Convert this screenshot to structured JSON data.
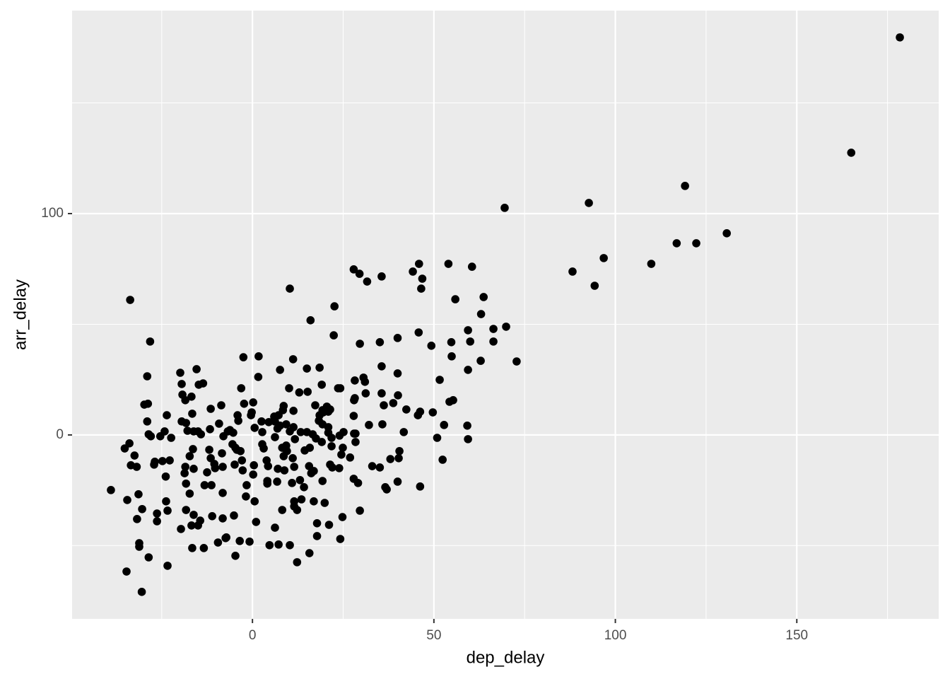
{
  "chart_data": {
    "type": "scatter",
    "x_label": "dep_delay",
    "y_label": "arr_delay",
    "xlim": [
      -49.7,
      189.1
    ],
    "ylim": [
      -83.1,
      191.7
    ],
    "xticks": [
      0,
      50,
      100,
      150
    ],
    "yticks": [
      0,
      100
    ],
    "xminor": [
      -25,
      25,
      75,
      125,
      175
    ],
    "yminor": [
      -50,
      50,
      150
    ],
    "grid": true,
    "color": "#000000",
    "x": [
      178.4,
      165.0,
      119.2,
      130.7,
      122.3,
      116.9,
      109.9,
      96.8,
      94.3,
      92.7,
      88.2,
      69.5,
      72.8,
      69.9,
      66.4,
      66.4,
      63.7,
      63.0,
      62.9,
      60.5,
      60.0,
      59.4,
      59.4,
      59.2,
      59.4,
      55.9,
      54.0,
      54.8,
      54.9,
      55.3,
      54.3,
      52.8,
      52.4,
      51.6,
      50.9,
      49.3,
      49.7,
      45.9,
      46.8,
      46.5,
      44.2,
      45.8,
      46.2,
      45.6,
      46.2,
      42.4,
      41.7,
      40.0,
      40.0,
      40.1,
      40.5,
      40.3,
      40.0,
      38.0,
      38.8,
      35.6,
      35.1,
      35.6,
      35.6,
      35.8,
      35.1,
      36.2,
      36.6,
      37.0,
      31.6,
      29.5,
      27.9,
      29.6,
      22.6,
      22.4,
      16.0,
      10.3,
      30.6,
      31.0,
      31.2,
      28.2,
      28.0,
      23.6,
      32.1,
      27.9,
      28.4,
      26.9,
      33.0,
      27.9,
      29.1,
      29.6,
      24.8,
      24.2,
      21.1,
      17.8,
      17.8,
      15.7,
      12.3,
      10.3,
      7.2,
      6.2,
      4.7,
      -0.8,
      -3.5,
      -4.7,
      -7.4,
      -9.5,
      -13.4,
      -16.6,
      -19.7,
      -23.4,
      -28.6,
      -31.2,
      -31.2,
      -34.7,
      -30.5,
      -39.0,
      -34.5,
      -31.4,
      -30.4,
      -31.8,
      -33.7,
      -28.2,
      -29.0,
      -29.8,
      -28.8,
      -29.0,
      -28.6,
      -28.0,
      -35.2,
      -33.9,
      -32.5,
      -33.5,
      -31.9,
      -26.9,
      -27.1,
      -25.4,
      -24.8,
      -23.6,
      -24.2,
      -22.4,
      -22.8,
      -23.9,
      -23.8,
      -23.4,
      -26.3,
      -26.3,
      -19.9,
      -19.5,
      -19.3,
      -18.5,
      -16.8,
      -15.4,
      -14.8,
      -13.6,
      -19.5,
      -18.3,
      -17.9,
      -16.6,
      -16.2,
      -15.0,
      -14.2,
      -16.4,
      -17.3,
      -18.5,
      -16.2,
      -18.7,
      -18.3,
      -17.3,
      -18.3,
      -16.2,
      -15.0,
      -16.8,
      -14.4,
      -13.2,
      -11.3,
      -12.5,
      -11.9,
      -11.5,
      -10.5,
      -10.3,
      -11.5,
      -8.6,
      -11.7,
      -9.2,
      -8.0,
      -8.4,
      -8.2,
      -8.2,
      -8.2,
      -11.1,
      -7.2,
      -6.8,
      -6.2,
      -5.3,
      -4.1,
      -3.9,
      -5.5,
      -4.7,
      -4.3,
      -3.3,
      -4.9,
      -2.9,
      -2.7,
      -3.1,
      -2.5,
      -2.3,
      -0.2,
      0.2,
      -0.4,
      0.6,
      0.4,
      0.2,
      -1.6,
      -1.8,
      0.6,
      1.0,
      -5.1,
      1.6,
      1.7,
      2.5,
      2.7,
      2.7,
      3.1,
      4.5,
      3.9,
      4.3,
      4.1,
      4.1,
      6.2,
      6.0,
      6.2,
      6.9,
      7.2,
      7.6,
      6.8,
      7.0,
      7.6,
      8.6,
      8.4,
      8.2,
      8.6,
      8.8,
      8.2,
      9.3,
      9.5,
      9.3,
      10.3,
      11.2,
      10.1,
      11.3,
      11.3,
      11.7,
      11.1,
      11.5,
      10.9,
      11.5,
      11.5,
      12.3,
      12.9,
      13.3,
      13.1,
      13.5,
      14.2,
      14.4,
      15.0,
      15.2,
      15.0,
      15.6,
      16.2,
      15.8,
      16.6,
      16.9,
      16.9,
      17.3,
      17.5,
      18.5,
      18.5,
      18.3,
      19.1,
      19.3,
      19.5,
      19.3,
      19.1,
      19.3,
      19.9,
      20.5,
      20.9,
      21.4,
      20.9,
      20.9,
      21.4,
      22.0,
      21.8,
      21.8,
      24.2,
      24.0,
      25.1,
      24.9,
      24.5,
      23.9,
      28.2,
      28.0,
      28.4
    ],
    "values": [
      179.6,
      127.5,
      112.5,
      91.1,
      86.6,
      86.6,
      77.3,
      79.9,
      67.4,
      104.8,
      73.8,
      102.6,
      33.2,
      48.9,
      47.9,
      42.2,
      62.3,
      54.6,
      33.5,
      76.0,
      42.2,
      47.3,
      29.4,
      4.2,
      -1.9,
      61.3,
      77.3,
      41.9,
      35.5,
      15.7,
      15.0,
      4.5,
      -11.2,
      24.9,
      -1.3,
      40.3,
      10.2,
      77.3,
      70.6,
      66.1,
      73.8,
      46.3,
      10.5,
      8.9,
      -23.3,
      11.5,
      1.3,
      43.8,
      27.8,
      17.9,
      -7.3,
      -10.5,
      -21.1,
      -10.9,
      14.4,
      71.6,
      41.9,
      31.0,
      18.8,
      4.8,
      -14.7,
      13.4,
      -23.6,
      -24.6,
      69.3,
      72.8,
      74.8,
      41.2,
      58.1,
      45.0,
      51.8,
      66.1,
      25.9,
      24.0,
      18.8,
      24.6,
      15.7,
      21.1,
      4.5,
      8.6,
      -3.2,
      -10.2,
      -14.1,
      -19.8,
      -21.7,
      -34.2,
      -37.1,
      -47.0,
      -40.6,
      -39.9,
      -45.7,
      -53.4,
      -57.5,
      -49.8,
      -49.5,
      -41.9,
      -49.8,
      -48.2,
      -47.9,
      -54.6,
      -46.6,
      -48.6,
      -51.1,
      -51.1,
      -42.5,
      -59.1,
      -55.3,
      -50.5,
      -48.9,
      -61.7,
      -70.9,
      -24.9,
      -29.4,
      -26.8,
      -33.5,
      -38.0,
      61.0,
      42.2,
      26.5,
      13.7,
      14.1,
      6.1,
      0.3,
      -0.6,
      -6.1,
      -3.8,
      -9.3,
      -13.7,
      -14.4,
      -12.1,
      -13.4,
      -0.6,
      -11.8,
      8.9,
      1.6,
      -1.3,
      -11.5,
      -18.8,
      -30.0,
      -34.2,
      -39.0,
      -35.5,
      28.1,
      23.0,
      18.2,
      15.7,
      17.3,
      29.7,
      22.7,
      23.3,
      6.1,
      5.4,
      1.9,
      9.6,
      1.6,
      1.6,
      0.3,
      -6.4,
      -9.6,
      -14.4,
      -15.3,
      -17.3,
      -22.0,
      -26.5,
      -33.9,
      -36.1,
      -40.9,
      -40.9,
      -38.7,
      -22.7,
      -22.7,
      -16.9,
      -6.7,
      -10.5,
      -13.1,
      -15.0,
      11.8,
      13.4,
      2.6,
      5.1,
      -0.6,
      -8.3,
      -14.4,
      -26.2,
      -37.7,
      -36.7,
      -46.3,
      1.6,
      2.2,
      1.0,
      8.9,
      6.4,
      -4.2,
      -5.8,
      -6.7,
      -7.3,
      -13.4,
      -11.5,
      -16.0,
      21.1,
      35.1,
      14.1,
      10.2,
      14.7,
      8.9,
      3.2,
      -13.7,
      -17.9,
      -22.7,
      -27.8,
      -30.0,
      -39.3,
      -36.4,
      26.2,
      35.5,
      6.1,
      1.3,
      -4.2,
      -6.1,
      5.8,
      -11.5,
      -14.1,
      -22.0,
      -20.8,
      -1.0,
      8.3,
      6.1,
      2.9,
      8.9,
      4.2,
      -21.1,
      -15.3,
      29.4,
      13.1,
      11.2,
      -5.8,
      -9.6,
      -16.0,
      -33.9,
      -4.8,
      -7.3,
      4.8,
      1.6,
      34.2,
      21.1,
      10.9,
      3.5,
      -1.9,
      -10.5,
      -14.4,
      -21.7,
      -30.0,
      -32.3,
      -33.9,
      19.2,
      1.3,
      -20.4,
      -29.1,
      -23.6,
      -7.0,
      30.0,
      19.5,
      1.3,
      -14.1,
      -17.3,
      -5.8,
      0.3,
      -30.0,
      -16.3,
      13.4,
      -1.6,
      30.4,
      8.9,
      6.4,
      22.7,
      11.2,
      10.2,
      4.8,
      -3.2,
      -20.8,
      -30.7,
      12.8,
      10.5,
      11.5,
      3.5,
      1.0,
      -13.4,
      -14.7,
      -5.1,
      -1.3,
      21.1,
      -0.3,
      1.3,
      -5.8,
      -8.9,
      -15.0,
      16.6,
      0.6,
      0.6
    ]
  }
}
